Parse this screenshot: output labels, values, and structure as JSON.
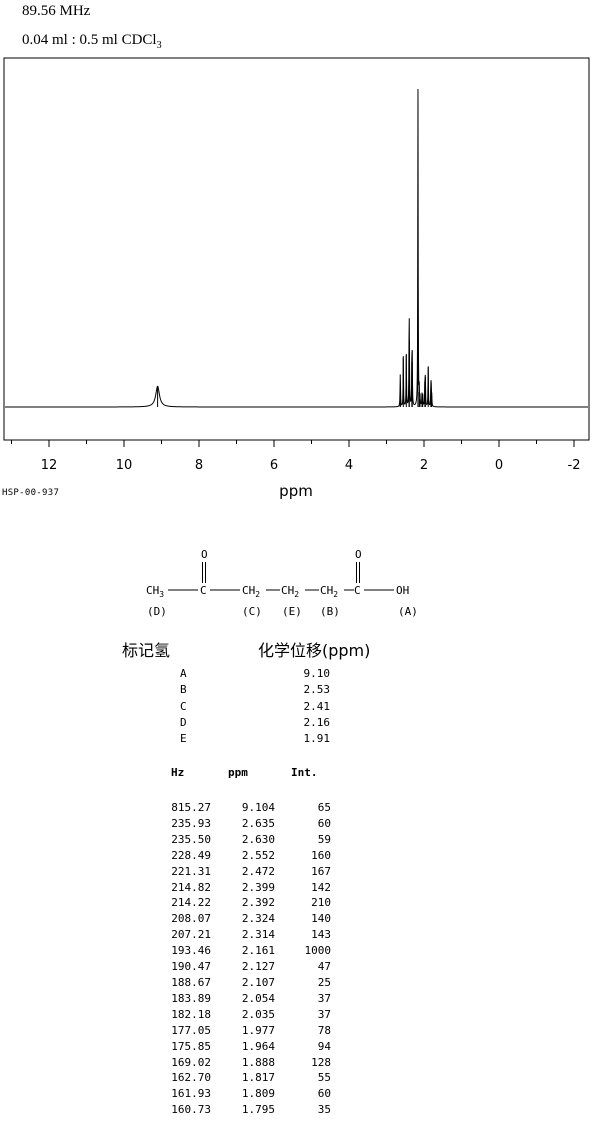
{
  "header": {
    "frequency": "89.56 MHz",
    "sample_prefix": "0.04 ml : 0.5 ml CDCl",
    "sample_sub": "3"
  },
  "chart_data": {
    "type": "line",
    "xlabel": "ppm",
    "xlim": [
      13.2,
      -2.4
    ],
    "x_reversed": true,
    "x_ticks": [
      12,
      10,
      8,
      6,
      4,
      2,
      0,
      -2
    ],
    "x_tick_labels": [
      "12",
      "10",
      "8",
      "6",
      "4",
      "2",
      "0",
      "-2"
    ],
    "peaks": [
      {
        "ppm": 9.104,
        "intensity": 65
      },
      {
        "ppm": 2.635,
        "intensity": 60
      },
      {
        "ppm": 2.63,
        "intensity": 59
      },
      {
        "ppm": 2.552,
        "intensity": 160
      },
      {
        "ppm": 2.472,
        "intensity": 167
      },
      {
        "ppm": 2.399,
        "intensity": 142
      },
      {
        "ppm": 2.392,
        "intensity": 210
      },
      {
        "ppm": 2.324,
        "intensity": 140
      },
      {
        "ppm": 2.314,
        "intensity": 143
      },
      {
        "ppm": 2.161,
        "intensity": 1000
      },
      {
        "ppm": 2.127,
        "intensity": 47
      },
      {
        "ppm": 2.107,
        "intensity": 25
      },
      {
        "ppm": 2.054,
        "intensity": 37
      },
      {
        "ppm": 2.035,
        "intensity": 37
      },
      {
        "ppm": 1.977,
        "intensity": 78
      },
      {
        "ppm": 1.964,
        "intensity": 94
      },
      {
        "ppm": 1.888,
        "intensity": 128
      },
      {
        "ppm": 1.817,
        "intensity": 55
      },
      {
        "ppm": 1.809,
        "intensity": 60
      },
      {
        "ppm": 1.795,
        "intensity": 35
      }
    ]
  },
  "spectrum_code": "HSP-00-937",
  "structure": {
    "o1": "O",
    "o2": "O",
    "ch3": "CH",
    "ch3_sub": "3",
    "c1": "C",
    "ch2a": "CH",
    "ch2a_sub": "2",
    "ch2b": "CH",
    "ch2b_sub": "2",
    "ch2c": "CH",
    "ch2c_sub": "2",
    "c2": "C",
    "oh": "OH",
    "labels": [
      "(D)",
      "(C)",
      "(E)",
      "(B)",
      "(A)"
    ]
  },
  "assignment": {
    "header_label": "标记氢",
    "header_shift": "化学位移(ppm)",
    "rows": [
      {
        "label": "A",
        "shift": "9.10"
      },
      {
        "label": "B",
        "shift": "2.53"
      },
      {
        "label": "C",
        "shift": "2.41"
      },
      {
        "label": "D",
        "shift": "2.16"
      },
      {
        "label": "E",
        "shift": "1.91"
      }
    ]
  },
  "peak_table": {
    "headers": {
      "hz": "Hz",
      "ppm": "ppm",
      "int": "Int."
    },
    "rows": [
      {
        "hz": "815.27",
        "ppm": "9.104",
        "int": "65"
      },
      {
        "hz": "235.93",
        "ppm": "2.635",
        "int": "60"
      },
      {
        "hz": "235.50",
        "ppm": "2.630",
        "int": "59"
      },
      {
        "hz": "228.49",
        "ppm": "2.552",
        "int": "160"
      },
      {
        "hz": "221.31",
        "ppm": "2.472",
        "int": "167"
      },
      {
        "hz": "214.82",
        "ppm": "2.399",
        "int": "142"
      },
      {
        "hz": "214.22",
        "ppm": "2.392",
        "int": "210"
      },
      {
        "hz": "208.07",
        "ppm": "2.324",
        "int": "140"
      },
      {
        "hz": "207.21",
        "ppm": "2.314",
        "int": "143"
      },
      {
        "hz": "193.46",
        "ppm": "2.161",
        "int": "1000"
      },
      {
        "hz": "190.47",
        "ppm": "2.127",
        "int": "47"
      },
      {
        "hz": "188.67",
        "ppm": "2.107",
        "int": "25"
      },
      {
        "hz": "183.89",
        "ppm": "2.054",
        "int": "37"
      },
      {
        "hz": "182.18",
        "ppm": "2.035",
        "int": "37"
      },
      {
        "hz": "177.05",
        "ppm": "1.977",
        "int": "78"
      },
      {
        "hz": "175.85",
        "ppm": "1.964",
        "int": "94"
      },
      {
        "hz": "169.02",
        "ppm": "1.888",
        "int": "128"
      },
      {
        "hz": "162.70",
        "ppm": "1.817",
        "int": "55"
      },
      {
        "hz": "161.93",
        "ppm": "1.809",
        "int": "60"
      },
      {
        "hz": "160.73",
        "ppm": "1.795",
        "int": "35"
      }
    ]
  }
}
